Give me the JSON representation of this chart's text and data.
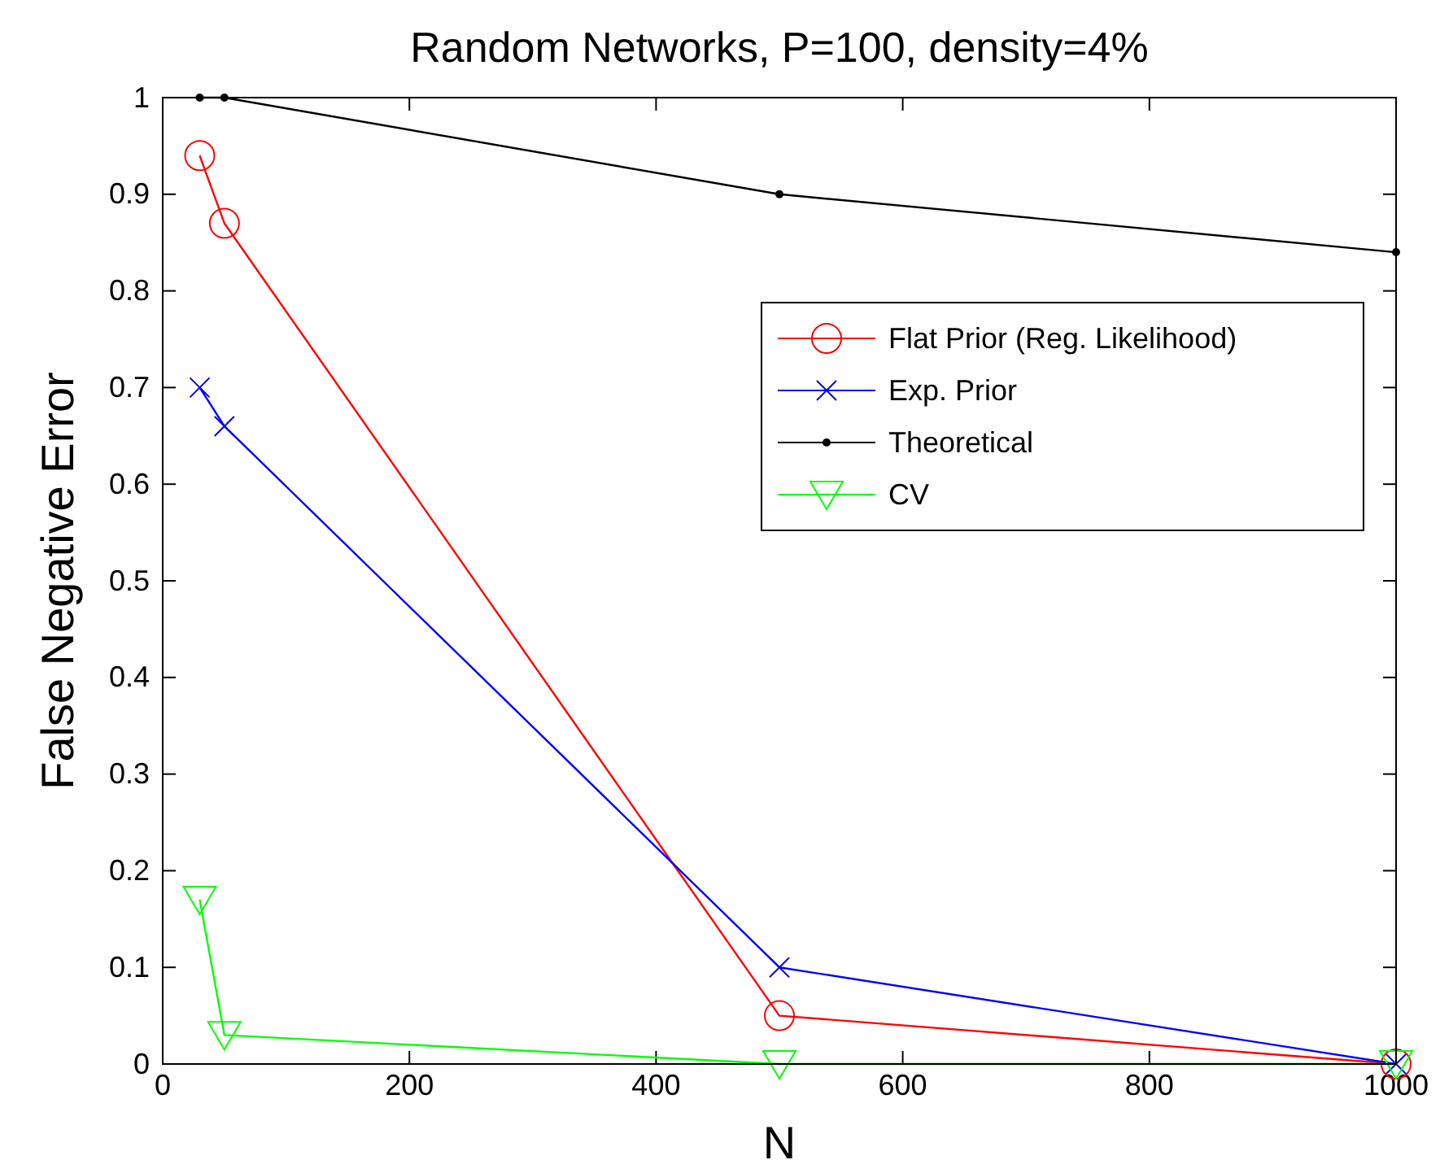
{
  "chart_data": {
    "type": "line",
    "title": "Random Networks, P=100, density=4%",
    "xlabel": "N",
    "ylabel": "False Negative Error",
    "x": [
      30,
      50,
      500,
      1000
    ],
    "series": [
      {
        "name": "Flat Prior (Reg. Likelihood)",
        "color": "#ff0000",
        "marker": "circle",
        "values": [
          0.94,
          0.87,
          0.05,
          0
        ]
      },
      {
        "name": "Exp. Prior",
        "color": "#0000ff",
        "marker": "cross",
        "values": [
          0.7,
          0.66,
          0.1,
          0
        ]
      },
      {
        "name": "Theoretical",
        "color": "#000000",
        "marker": "dot",
        "values": [
          1,
          1,
          0.9,
          0.84
        ]
      },
      {
        "name": "CV",
        "color": "#00ff00",
        "marker": "triangle",
        "values": [
          0.17,
          0.03,
          0,
          0
        ]
      }
    ],
    "xlim": [
      0,
      1000
    ],
    "xticks": [
      0,
      200,
      400,
      600,
      800,
      1000
    ],
    "ylim": [
      0,
      1
    ],
    "yticks": [
      0,
      0.1,
      0.2,
      0.3,
      0.4,
      0.5,
      0.6,
      0.7,
      0.8,
      0.9,
      1
    ],
    "grid": false,
    "legend": "top right"
  }
}
